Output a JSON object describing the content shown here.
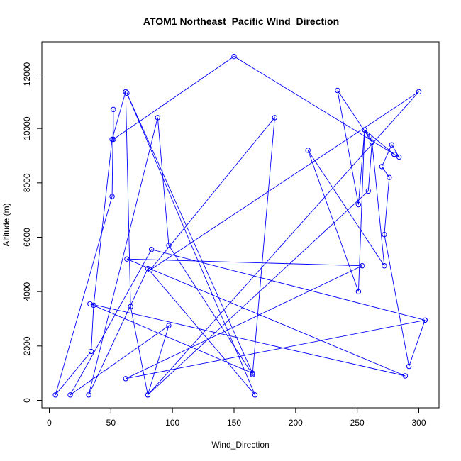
{
  "chart_data": {
    "type": "line",
    "title": "ATOM1 Northeast_Pacific Wind_Direction",
    "xlabel": "Wind_Direction",
    "ylabel": "Altitude (m)",
    "xlim": [
      0,
      310
    ],
    "ylim": [
      0,
      12800
    ],
    "x_ticks": [
      0,
      50,
      100,
      150,
      200,
      250,
      300
    ],
    "y_ticks": [
      0,
      2000,
      4000,
      6000,
      8000,
      10000,
      12000
    ],
    "grid": false,
    "color": "#0000ff",
    "series": [
      {
        "points": [
          [
            280,
            9050
          ],
          [
            150,
            12650
          ],
          [
            52,
            9600
          ],
          [
            52,
            10700
          ],
          [
            51,
            7500
          ],
          [
            5,
            200
          ],
          [
            34,
            1800
          ],
          [
            36,
            3500
          ],
          [
            51,
            9600
          ],
          [
            62,
            11350
          ],
          [
            66,
            3450
          ],
          [
            80,
            200
          ],
          [
            97,
            2750
          ],
          [
            17,
            200
          ],
          [
            83,
            5550
          ],
          [
            305,
            2950
          ],
          [
            62,
            800
          ],
          [
            254,
            4950
          ],
          [
            63,
            5200
          ],
          [
            289,
            900
          ],
          [
            33,
            3550
          ],
          [
            165,
            1000
          ],
          [
            63,
            11300
          ],
          [
            167,
            200
          ],
          [
            80,
            4850
          ],
          [
            32,
            200
          ],
          [
            88,
            10400
          ],
          [
            97,
            5700
          ],
          [
            165,
            950
          ],
          [
            183,
            10400
          ],
          [
            82,
            4800
          ],
          [
            300,
            11350
          ],
          [
            80,
            200
          ],
          [
            259,
            7700
          ],
          [
            262,
            9500
          ],
          [
            234,
            11400
          ],
          [
            251,
            7200
          ],
          [
            256,
            9950
          ],
          [
            251,
            4000
          ],
          [
            210,
            9200
          ],
          [
            272,
            4950
          ],
          [
            262,
            9500
          ],
          [
            260,
            9700
          ],
          [
            256,
            9950
          ],
          [
            280,
            9050
          ],
          [
            284,
            8950
          ],
          [
            278,
            9400
          ],
          [
            270,
            8600
          ],
          [
            276,
            8200
          ],
          [
            272,
            6100
          ],
          [
            292,
            1250
          ],
          [
            305,
            2950
          ]
        ]
      }
    ]
  }
}
